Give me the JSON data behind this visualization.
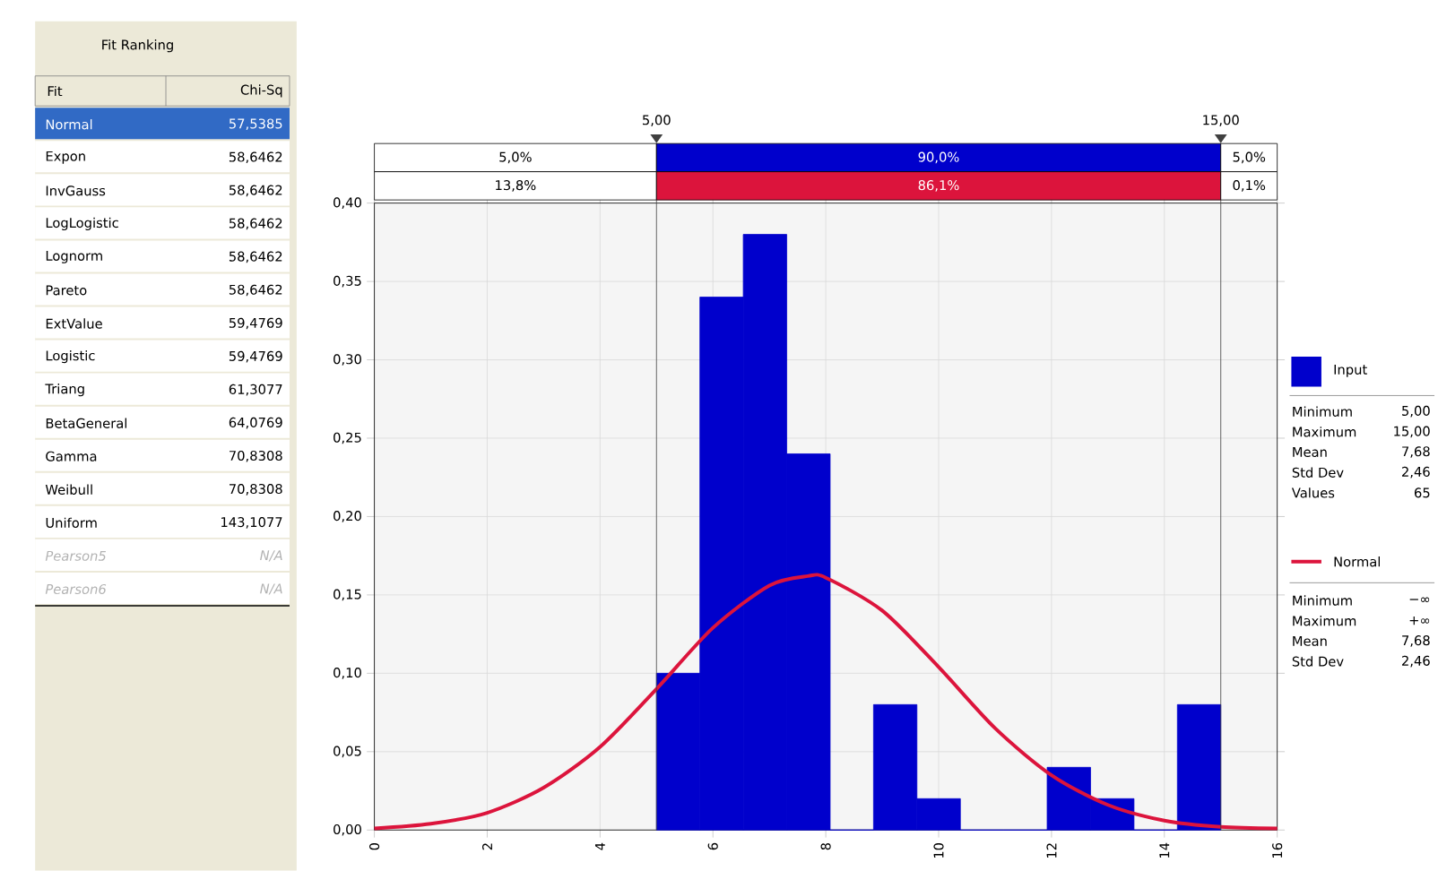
{
  "chart_data": {
    "type": "histogram",
    "series": [
      {
        "name": "Input",
        "color": "#0000cc",
        "bins": [
          5,
          5.769,
          6.538,
          7.308,
          8.077,
          8.846,
          9.615,
          10.385,
          11.154,
          11.923,
          12.692,
          13.462,
          14.231,
          15
        ],
        "values": [
          0.1,
          0.34,
          0.38,
          0.24,
          0,
          0.08,
          0.02,
          0,
          0,
          0.04,
          0.02,
          0,
          0.08
        ]
      },
      {
        "name": "Normal",
        "type": "line",
        "color": "#dc143c",
        "x": [
          0,
          1,
          2,
          3,
          4,
          5,
          6,
          7,
          7.68,
          8,
          9,
          10,
          11,
          12,
          13,
          14,
          15,
          16
        ],
        "values": [
          0.001,
          0.004,
          0.011,
          0.027,
          0.053,
          0.09,
          0.129,
          0.156,
          0.162,
          0.161,
          0.14,
          0.104,
          0.065,
          0.035,
          0.016,
          0.006,
          0.002,
          0.001
        ]
      }
    ],
    "xlim": [
      0,
      16
    ],
    "xticks": [
      0,
      2,
      4,
      6,
      8,
      10,
      12,
      14,
      16
    ],
    "ylim": [
      0,
      0.4
    ],
    "yticks": [
      {
        "value": 0,
        "label": "0,00"
      },
      {
        "value": 0.05,
        "label": "0,05"
      },
      {
        "value": 0.1,
        "label": "0,10"
      },
      {
        "value": 0.15,
        "label": "0,15"
      },
      {
        "value": 0.2,
        "label": "0,20"
      },
      {
        "value": 0.25,
        "label": "0,25"
      },
      {
        "value": 0.3,
        "label": "0,30"
      },
      {
        "value": 0.35,
        "label": "0,35"
      },
      {
        "value": 0.4,
        "label": "0,40"
      }
    ],
    "grid": true,
    "legend": "right",
    "ref_lines": [
      {
        "axis": "x",
        "value": 5,
        "label": "5,00",
        "color": "#404040"
      },
      {
        "axis": "x",
        "value": 15,
        "label": "15,00",
        "color": "#404040"
      }
    ],
    "annotations": [
      "5,0%",
      "90,0%",
      "5,0%",
      "13,8%",
      "86,1%",
      "0,1%",
      "Fit Ranking",
      "Fit",
      "Chi-Sq",
      "Normal",
      "57,5385",
      "Expon",
      "58,6462",
      "InvGauss",
      "58,6462",
      "LogLogistic",
      "58,6462",
      "Lognorm",
      "58,6462",
      "Pareto",
      "58,6462",
      "ExtValue",
      "59,4769",
      "Logistic",
      "59,4769",
      "Triang",
      "61,3077",
      "BetaGeneral",
      "64,0769",
      "Gamma",
      "70,8308",
      "Weibull",
      "70,8308",
      "Uniform",
      "143,1077",
      "Pearson5",
      "N/A",
      "Pearson6",
      "N/A",
      "Minimum",
      "5,00",
      "Maximum",
      "15,00",
      "Mean",
      "7,68",
      "Std Dev",
      "2,46",
      "Values",
      "65",
      "Minimum",
      "−∞",
      "Maximum",
      "+∞",
      "Mean",
      "7,68",
      "Std Dev",
      "2,46"
    ]
  }
}
